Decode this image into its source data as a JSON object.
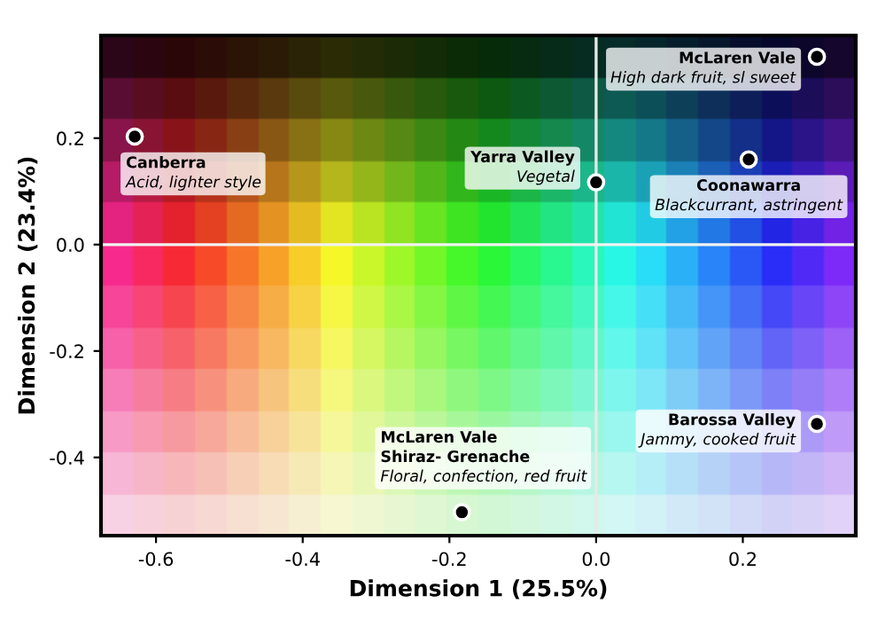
{
  "chart_data": {
    "type": "scatter",
    "xlabel": "Dimension 1 (25.5%)",
    "ylabel": "Dimension 2 (23.4%)",
    "x": [
      -0.629,
      0.301,
      0.0,
      0.208,
      0.301,
      -0.183
    ],
    "series": [
      {
        "color": "#000000",
        "values": [
          0.203,
          0.353,
          0.117,
          0.16,
          -0.337,
          -0.503
        ]
      }
    ],
    "marker": "circle",
    "xlim": [
      -0.675,
      0.354
    ],
    "ylim": [
      -0.547,
      0.393
    ],
    "xticks": [
      -0.6,
      -0.4,
      -0.2,
      {
        "value": 0,
        "label": "0.0"
      },
      0.2
    ],
    "yticks": [
      -0.4,
      -0.2,
      {
        "value": 0,
        "label": "0.0"
      },
      0.2
    ],
    "ref_lines": [
      {
        "axis": "x",
        "value": 0,
        "color": "#e8e8e8"
      },
      {
        "axis": "y",
        "value": 0,
        "color": "#f2f2f2"
      }
    ],
    "grid": false,
    "legend": false,
    "annotations": [
      {
        "text": "Canberra\nAcid, lighter style",
        "x": -0.629,
        "y": 0.203
      },
      {
        "text": "McLaren Vale\nHigh dark fruit, sl sweet",
        "x": 0.301,
        "y": 0.353
      },
      {
        "text": "Yarra Valley\nVegetal",
        "x": 0.0,
        "y": 0.117
      },
      {
        "text": "Coonawarra\nBlackcurrant, astringent",
        "x": 0.208,
        "y": 0.16
      },
      {
        "text": "Barossa Valley\nJammy, cooked fruit",
        "x": 0.301,
        "y": -0.337
      },
      {
        "text": "McLaren Vale\nShiraz- Grenache\nFloral, confection, red fruit",
        "x": -0.183,
        "y": -0.503
      }
    ]
  }
}
